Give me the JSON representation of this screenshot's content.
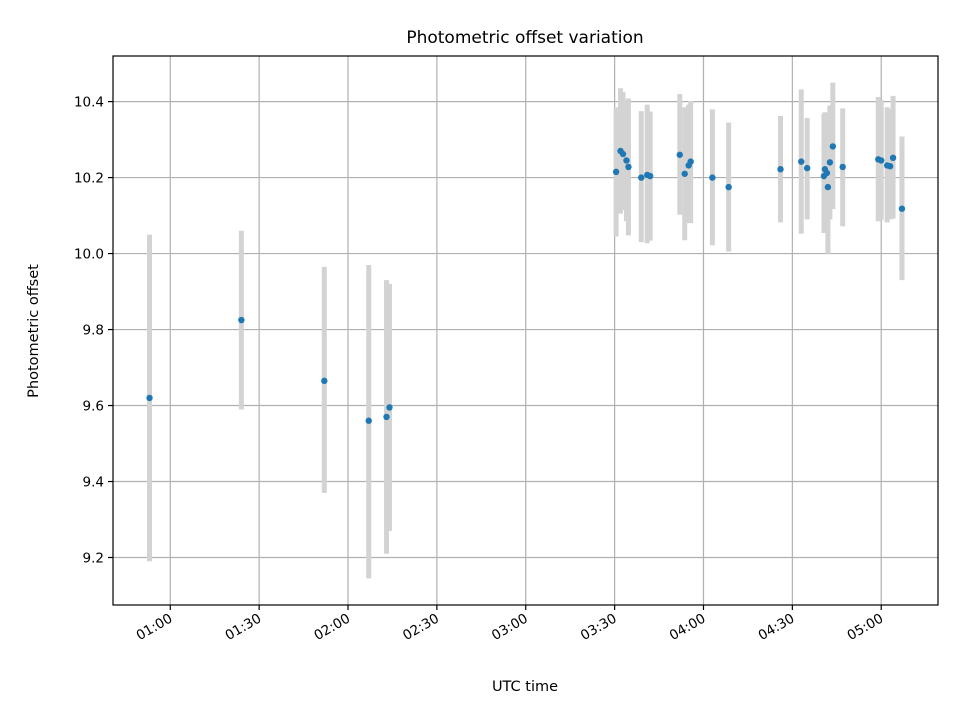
{
  "chart_data": {
    "type": "scatter",
    "title": "Photometric offset variation",
    "xlabel": "UTC time",
    "ylabel": "Photometric offset",
    "x_ticks": [
      "01:00",
      "01:30",
      "02:00",
      "02:30",
      "03:00",
      "03:30",
      "04:00",
      "04:30",
      "05:00"
    ],
    "y_ticks": [
      "9.2",
      "9.4",
      "9.6",
      "9.8",
      "10.0",
      "10.2",
      "10.4"
    ],
    "xlim": [
      "00:40:40",
      "05:19:10"
    ],
    "ylim": [
      9.075,
      10.52
    ],
    "grid": true,
    "point_color": "#1f77b4",
    "errorbar_color": "#d3d3d3",
    "points": [
      {
        "x": "00:53:00",
        "y": 9.62,
        "lo": 9.19,
        "hi": 10.05
      },
      {
        "x": "01:24:00",
        "y": 9.825,
        "lo": 9.59,
        "hi": 10.06
      },
      {
        "x": "01:52:00",
        "y": 9.665,
        "lo": 9.37,
        "hi": 9.965
      },
      {
        "x": "02:07:00",
        "y": 9.56,
        "lo": 9.145,
        "hi": 9.97
      },
      {
        "x": "02:13:00",
        "y": 9.57,
        "lo": 9.21,
        "hi": 9.93
      },
      {
        "x": "02:14:00",
        "y": 9.595,
        "lo": 9.27,
        "hi": 9.92
      },
      {
        "x": "03:30:30",
        "y": 10.215,
        "lo": 10.045,
        "hi": 10.385
      },
      {
        "x": "03:32:00",
        "y": 10.27,
        "lo": 10.105,
        "hi": 10.435
      },
      {
        "x": "03:32:50",
        "y": 10.262,
        "lo": 10.115,
        "hi": 10.425
      },
      {
        "x": "03:34:00",
        "y": 10.245,
        "lo": 10.085,
        "hi": 10.405
      },
      {
        "x": "03:34:40",
        "y": 10.228,
        "lo": 10.048,
        "hi": 10.408
      },
      {
        "x": "03:39:00",
        "y": 10.2,
        "lo": 10.03,
        "hi": 10.375
      },
      {
        "x": "03:41:00",
        "y": 10.207,
        "lo": 10.027,
        "hi": 10.392
      },
      {
        "x": "03:42:00",
        "y": 10.204,
        "lo": 10.034,
        "hi": 10.374
      },
      {
        "x": "03:52:00",
        "y": 10.26,
        "lo": 10.102,
        "hi": 10.42
      },
      {
        "x": "03:53:40",
        "y": 10.21,
        "lo": 10.035,
        "hi": 10.385
      },
      {
        "x": "03:55:00",
        "y": 10.232,
        "lo": 10.08,
        "hi": 10.392
      },
      {
        "x": "03:55:40",
        "y": 10.242,
        "lo": 10.08,
        "hi": 10.402
      },
      {
        "x": "04:03:00",
        "y": 10.2,
        "lo": 10.022,
        "hi": 10.38
      },
      {
        "x": "04:08:30",
        "y": 10.175,
        "lo": 10.005,
        "hi": 10.345
      },
      {
        "x": "04:26:00",
        "y": 10.222,
        "lo": 10.082,
        "hi": 10.362
      },
      {
        "x": "04:33:00",
        "y": 10.242,
        "lo": 10.052,
        "hi": 10.432
      },
      {
        "x": "04:35:00",
        "y": 10.225,
        "lo": 10.09,
        "hi": 10.357
      },
      {
        "x": "04:40:40",
        "y": 10.204,
        "lo": 10.054,
        "hi": 10.368
      },
      {
        "x": "04:41:00",
        "y": 10.222,
        "lo": 10.07,
        "hi": 10.372
      },
      {
        "x": "04:41:40",
        "y": 10.212,
        "lo": 10.057,
        "hi": 10.367
      },
      {
        "x": "04:42:00",
        "y": 10.175,
        "lo": 10.0,
        "hi": 10.35
      },
      {
        "x": "04:42:40",
        "y": 10.24,
        "lo": 10.09,
        "hi": 10.39
      },
      {
        "x": "04:43:40",
        "y": 10.282,
        "lo": 10.117,
        "hi": 10.45
      },
      {
        "x": "04:47:00",
        "y": 10.228,
        "lo": 10.072,
        "hi": 10.382
      },
      {
        "x": "04:59:00",
        "y": 10.248,
        "lo": 10.085,
        "hi": 10.412
      },
      {
        "x": "05:00:00",
        "y": 10.245,
        "lo": 10.088,
        "hi": 10.404
      },
      {
        "x": "05:02:00",
        "y": 10.232,
        "lo": 10.082,
        "hi": 10.385
      },
      {
        "x": "05:03:00",
        "y": 10.23,
        "lo": 10.09,
        "hi": 10.38
      },
      {
        "x": "05:04:00",
        "y": 10.252,
        "lo": 10.092,
        "hi": 10.415
      },
      {
        "x": "05:07:00",
        "y": 10.118,
        "lo": 9.93,
        "hi": 10.308
      }
    ]
  }
}
